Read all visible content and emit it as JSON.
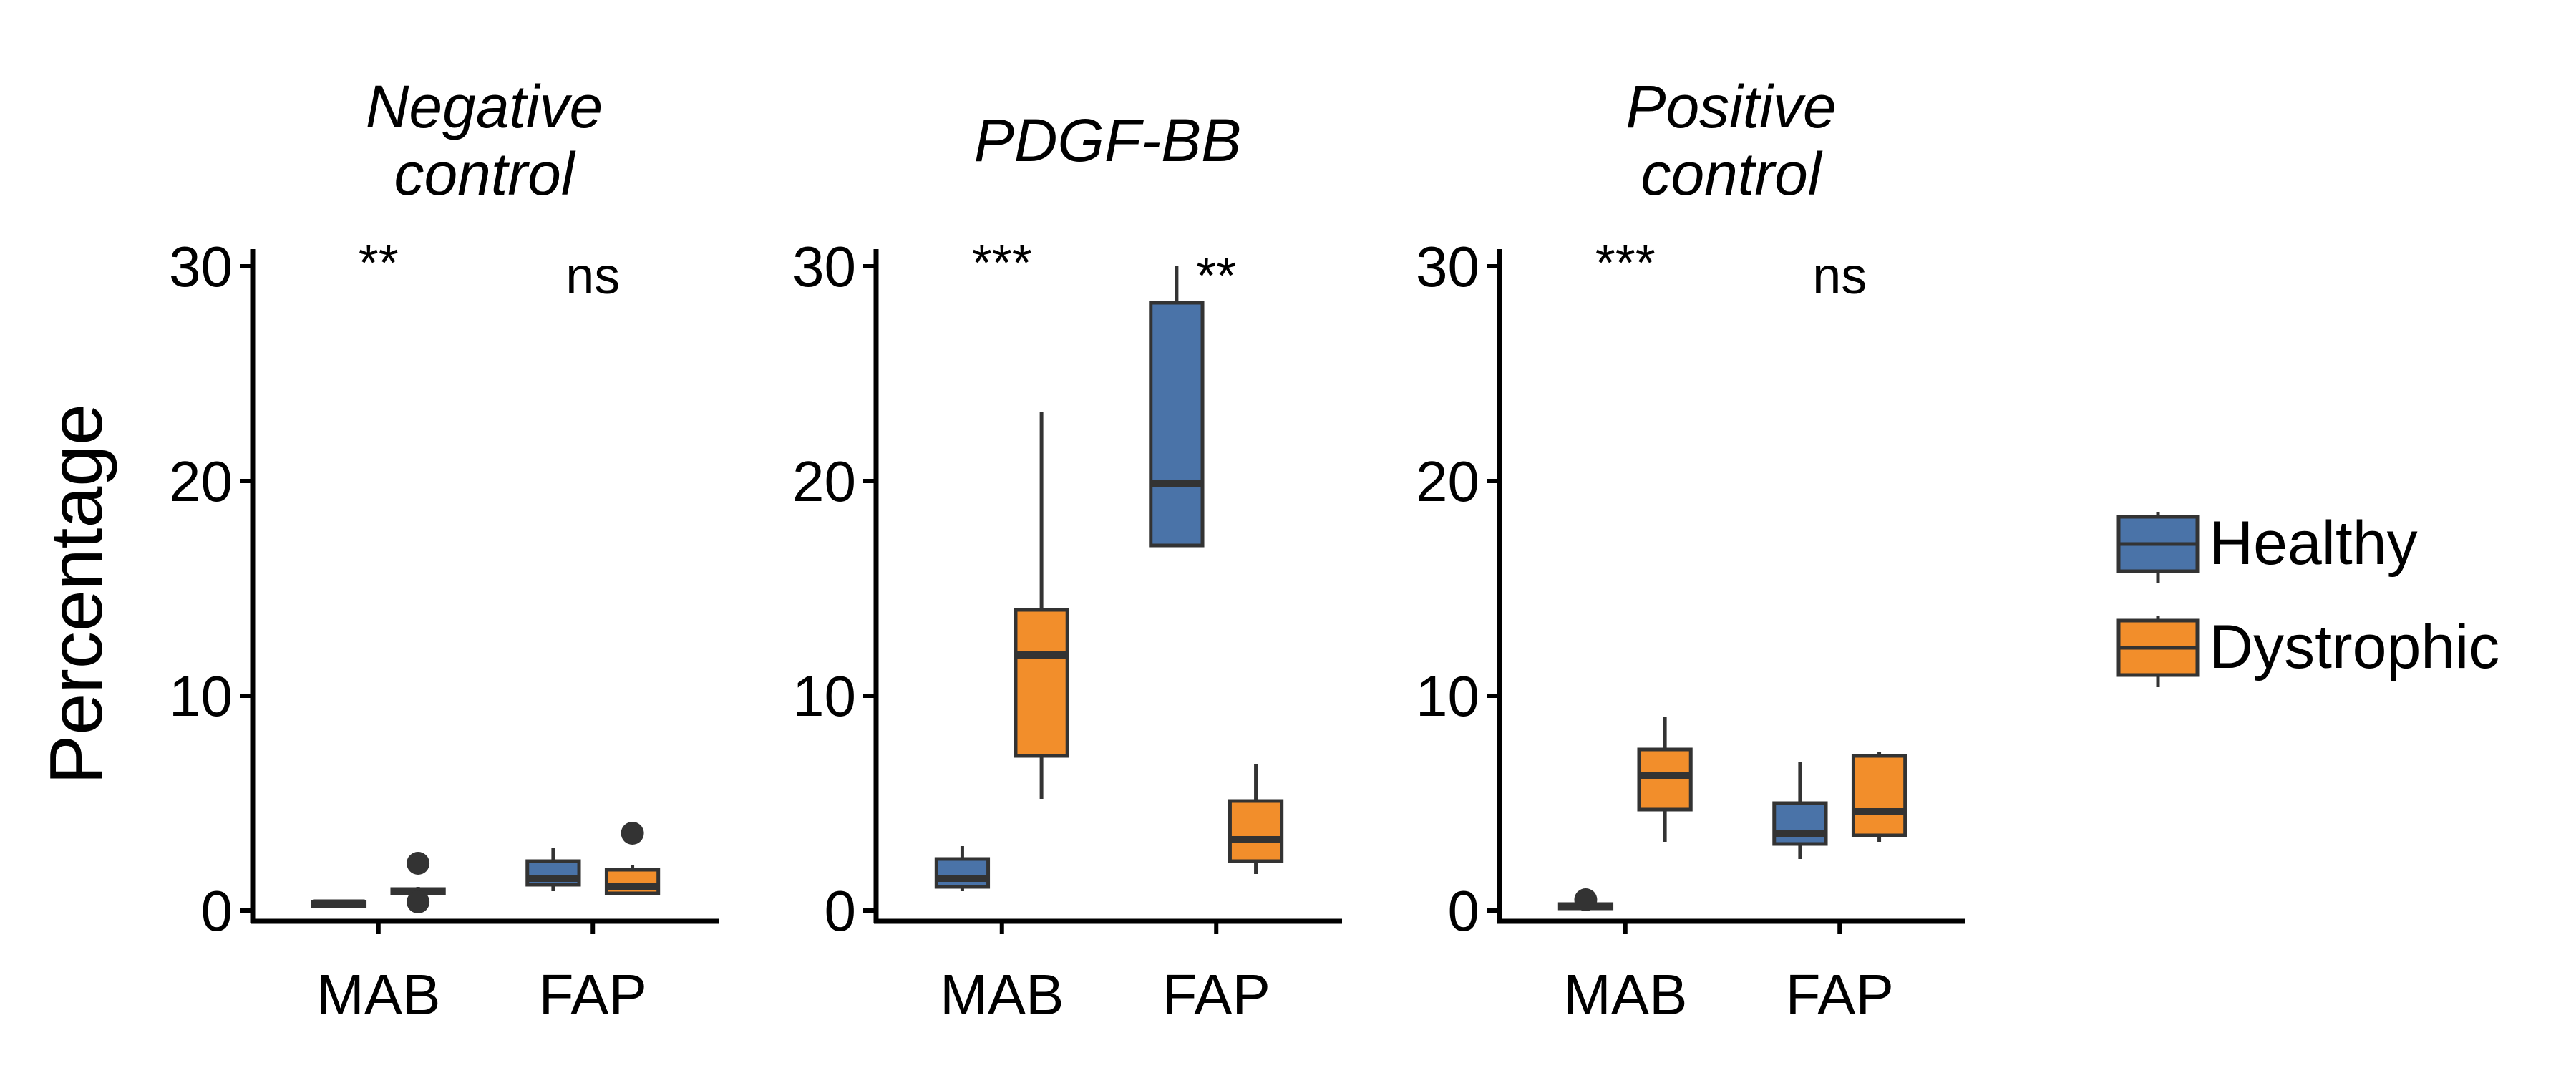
{
  "chart_data": {
    "type": "box",
    "ylabel": "Percentage",
    "ylim": [
      -1,
      30.7
    ],
    "yticks": [
      0,
      10,
      20,
      30
    ],
    "categories": [
      "MAB",
      "FAP"
    ],
    "legend": {
      "position": "right",
      "entries": [
        {
          "name": "Healthy",
          "color": "#4A73A8"
        },
        {
          "name": "Dystrophic",
          "color": "#F28E2B"
        }
      ]
    },
    "panels": [
      {
        "title": [
          "Negative",
          "control"
        ],
        "significance": [
          "**",
          "ns"
        ],
        "boxes": [
          {
            "category": "MAB",
            "group": "Healthy",
            "min": 0.2,
            "q1": 0.3,
            "median": 0.35,
            "q3": 0.4,
            "max": 0.5,
            "outliers": []
          },
          {
            "category": "MAB",
            "group": "Dystrophic",
            "min": 0.7,
            "q1": 0.8,
            "median": 0.9,
            "q3": 1.0,
            "max": 1.1,
            "outliers": [
              2.2,
              0.4
            ]
          },
          {
            "category": "FAP",
            "group": "Healthy",
            "min": 0.9,
            "q1": 1.2,
            "median": 1.5,
            "q3": 2.3,
            "max": 2.9,
            "outliers": []
          },
          {
            "category": "FAP",
            "group": "Dystrophic",
            "min": 0.7,
            "q1": 0.8,
            "median": 1.1,
            "q3": 1.9,
            "max": 2.1,
            "outliers": [
              3.6
            ]
          }
        ]
      },
      {
        "title": [
          "PDGF-BB"
        ],
        "significance": [
          "***",
          "**"
        ],
        "boxes": [
          {
            "category": "MAB",
            "group": "Healthy",
            "min": 0.9,
            "q1": 1.1,
            "median": 1.5,
            "q3": 2.4,
            "max": 3.0,
            "outliers": []
          },
          {
            "category": "MAB",
            "group": "Dystrophic",
            "min": 5.2,
            "q1": 7.2,
            "median": 11.9,
            "q3": 14.0,
            "max": 23.2,
            "outliers": []
          },
          {
            "category": "FAP",
            "group": "Healthy",
            "min": 17.0,
            "q1": 17.0,
            "median": 19.9,
            "q3": 28.3,
            "max": 30.0,
            "outliers": []
          },
          {
            "category": "FAP",
            "group": "Dystrophic",
            "min": 1.7,
            "q1": 2.3,
            "median": 3.3,
            "q3": 5.1,
            "max": 6.8,
            "outliers": []
          }
        ]
      },
      {
        "title": [
          "Positive",
          "control"
        ],
        "significance": [
          "***",
          "ns"
        ],
        "boxes": [
          {
            "category": "MAB",
            "group": "Healthy",
            "min": 0.05,
            "q1": 0.1,
            "median": 0.2,
            "q3": 0.3,
            "max": 0.35,
            "outliers": [
              0.5
            ]
          },
          {
            "category": "MAB",
            "group": "Dystrophic",
            "min": 3.2,
            "q1": 4.7,
            "median": 6.3,
            "q3": 7.5,
            "max": 9.0,
            "outliers": []
          },
          {
            "category": "FAP",
            "group": "Healthy",
            "min": 2.4,
            "q1": 3.1,
            "median": 3.6,
            "q3": 5.0,
            "max": 6.9,
            "outliers": []
          },
          {
            "category": "FAP",
            "group": "Dystrophic",
            "min": 3.2,
            "q1": 3.5,
            "median": 4.6,
            "q3": 7.2,
            "max": 7.4,
            "outliers": []
          }
        ]
      }
    ]
  }
}
